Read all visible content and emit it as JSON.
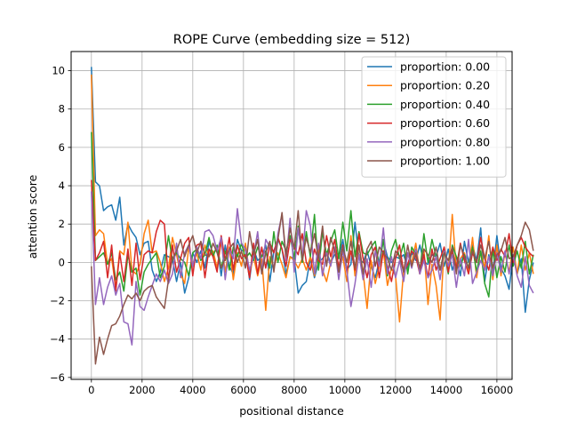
{
  "chart_data": {
    "type": "line",
    "title": "ROPE Curve (embedding size = 512)",
    "xlabel": "positional distance",
    "ylabel": "attention score",
    "xlim": [
      -800,
      16600
    ],
    "ylim": [
      -6.1,
      11.0
    ],
    "xticks": [
      0,
      2000,
      4000,
      6000,
      8000,
      10000,
      12000,
      14000,
      16000
    ],
    "yticks": [
      -6,
      -4,
      -2,
      0,
      2,
      4,
      6,
      8,
      10
    ],
    "grid": true,
    "legend_position": "top-right",
    "x_start": 0,
    "x_step": 160,
    "series": [
      {
        "name": "proportion: 0.00",
        "color": "#1f77b4",
        "values": [
          10.2,
          4.2,
          4.0,
          2.7,
          2.9,
          3.0,
          2.2,
          3.4,
          0.9,
          2.0,
          1.6,
          1.3,
          0.4,
          1.0,
          1.1,
          -0.4,
          -1.0,
          -0.5,
          0.4,
          0.3,
          0.2,
          -1.0,
          0.0,
          -1.6,
          -0.8,
          0.5,
          0.0,
          0.6,
          -0.3,
          1.1,
          0.4,
          0.8,
          -0.7,
          0.9,
          -0.2,
          -0.6,
          1.2,
          0.6,
          0.7,
          -0.9,
          0.7,
          0.1,
          0.3,
          0.9,
          -1.0,
          0.6,
          1.2,
          0.7,
          -0.6,
          0.3,
          0.2,
          -1.6,
          -1.2,
          -1.0,
          0.2,
          -0.8,
          0.0,
          0.2,
          0.5,
          0.0,
          0.4,
          0.2,
          1.2,
          -0.4,
          -0.1,
          2.1,
          0.2,
          0.0,
          0.6,
          -0.2,
          -0.8,
          0.1,
          1.1,
          0.3,
          0.0,
          0.3,
          0.2,
          0.4,
          -0.3,
          0.5,
          0.1,
          0.9,
          0.0,
          -0.1,
          0.4,
          0.3,
          1.0,
          -0.2,
          0.7,
          -0.4,
          0.3,
          -0.7,
          1.1,
          0.0,
          0.9,
          0.1,
          1.8,
          -1.0,
          0.4,
          -0.5,
          1.4,
          -0.3,
          -0.7,
          -1.4,
          0.3,
          -0.6,
          0.2,
          -2.6,
          -0.9,
          0.0
        ]
      },
      {
        "name": "proportion: 0.20",
        "color": "#ff7f0e",
        "values": [
          9.8,
          1.4,
          1.7,
          1.5,
          -0.1,
          0.2,
          -1.3,
          0.6,
          0.4,
          2.1,
          -0.4,
          -0.6,
          -0.1,
          1.5,
          2.2,
          0.5,
          0.6,
          0.0,
          -1.0,
          -0.3,
          1.3,
          0.4,
          -0.6,
          -1.1,
          0.8,
          -0.1,
          0.5,
          -0.4,
          0.9,
          0.3,
          0.6,
          -0.3,
          1.1,
          -0.5,
          0.8,
          -0.9,
          0.5,
          -0.2,
          1.0,
          -0.6,
          0.3,
          -0.7,
          0.2,
          -2.5,
          0.3,
          -0.3,
          0.5,
          -0.1,
          -0.8,
          0.3,
          0.1,
          -0.3,
          0.2,
          -0.4,
          0.3,
          -0.7,
          0.7,
          -0.4,
          -1.0,
          0.0,
          0.8,
          -0.5,
          0.3,
          -1.0,
          1.4,
          -0.7,
          0.9,
          -0.5,
          -2.4,
          0.1,
          -1.1,
          -0.2,
          0.6,
          -1.2,
          -0.3,
          -0.7,
          -3.1,
          -0.4,
          0.4,
          0.0,
          1.0,
          -0.6,
          0.7,
          -2.2,
          -0.1,
          -1.2,
          -3.0,
          0.8,
          -0.5,
          2.5,
          -0.4,
          0.2,
          0.5,
          -0.4,
          1.3,
          -0.8,
          0.6,
          -0.3,
          1.4,
          -0.9,
          0.9,
          -0.7,
          0.5,
          -0.5,
          0.8,
          -0.6,
          0.9,
          -0.4,
          0.5,
          -0.6
        ]
      },
      {
        "name": "proportion: 0.40",
        "color": "#2ca02c",
        "values": [
          6.8,
          0.1,
          0.3,
          0.5,
          -0.1,
          0.5,
          -0.9,
          -0.5,
          -1.5,
          0.4,
          -0.5,
          -0.3,
          -1.7,
          -0.5,
          -0.1,
          0.2,
          0.5,
          -0.8,
          -0.2,
          1.4,
          0.1,
          0.5,
          0.2,
          0.0,
          -0.7,
          0.5,
          0.7,
          0.1,
          0.4,
          1.3,
          0.3,
          0.9,
          -0.3,
          0.6,
          -0.4,
          0.8,
          0.3,
          1.0,
          0.2,
          0.5,
          0.1,
          0.8,
          0.3,
          0.6,
          -0.3,
          1.6,
          0.0,
          1.1,
          0.6,
          1.4,
          0.2,
          1.9,
          0.0,
          1.6,
          0.3,
          2.5,
          -0.4,
          1.6,
          0.4,
          1.1,
          1.7,
          0.2,
          2.1,
          0.6,
          2.7,
          0.3,
          1.6,
          0.5,
          0.4,
          0.8,
          1.1,
          -0.2,
          1.2,
          -0.7,
          0.6,
          1.2,
          0.2,
          1.0,
          -0.6,
          0.8,
          0.4,
          -0.5,
          1.5,
          0.0,
          1.2,
          0.3,
          -0.4,
          0.6,
          -0.6,
          0.9,
          0.3,
          -0.2,
          0.4,
          -0.3,
          0.8,
          -0.5,
          0.6,
          -1.1,
          -1.8,
          0.7,
          -0.8,
          0.3,
          -0.5,
          0.9,
          -0.2,
          0.6,
          -0.3,
          1.1,
          -0.6,
          0.4
        ]
      },
      {
        "name": "proportion: 0.60",
        "color": "#d62728",
        "values": [
          4.3,
          0.1,
          0.5,
          1.1,
          -0.8,
          0.9,
          -1.5,
          0.5,
          -1.0,
          0.7,
          -1.2,
          1.0,
          -0.9,
          0.4,
          0.6,
          0.5,
          1.6,
          2.2,
          2.0,
          -1.0,
          0.9,
          -0.5,
          0.2,
          1.0,
          1.3,
          -0.7,
          0.9,
          1.0,
          -0.8,
          0.7,
          0.3,
          -0.5,
          1.4,
          0.1,
          1.3,
          -0.4,
          0.9,
          0.2,
          0.4,
          -0.8,
          1.0,
          -0.6,
          0.8,
          -0.3,
          1.0,
          0.5,
          1.3,
          0.7,
          -0.2,
          1.2,
          0.8,
          0.4,
          1.5,
          0.0,
          -0.4,
          0.7,
          0.1,
          -0.1,
          1.4,
          0.3,
          1.2,
          -0.3,
          0.9,
          -0.5,
          0.6,
          -0.4,
          1.5,
          0.2,
          -0.8,
          0.4,
          0.8,
          -0.8,
          0.6,
          -0.2,
          -1.0,
          0.2,
          0.9,
          -0.5,
          -0.1,
          0.6,
          0.3,
          -0.6,
          0.4,
          -0.8,
          0.7,
          -0.4,
          0.2,
          0.8,
          -0.5,
          0.6,
          -0.3,
          1.0,
          0.1,
          -0.6,
          0.5,
          0.0,
          1.3,
          0.2,
          -0.4,
          0.8,
          0.1,
          0.7,
          0.3,
          1.5,
          0.0,
          0.9,
          1.3,
          0.8,
          0.5,
          0.3
        ]
      },
      {
        "name": "proportion: 0.80",
        "color": "#9467bd",
        "values": [
          3.7,
          -2.2,
          -0.8,
          -2.2,
          -1.3,
          -0.7,
          -1.7,
          -1.1,
          -3.1,
          -3.2,
          -4.3,
          -1.0,
          -2.3,
          -2.5,
          -1.8,
          -1.2,
          -0.6,
          -1.0,
          -0.4,
          -1.1,
          -0.6,
          1.0,
          -0.8,
          0.5,
          0.9,
          -0.2,
          0.8,
          0.2,
          1.6,
          1.7,
          1.4,
          0.6,
          1.3,
          -0.9,
          0.7,
          0.2,
          2.8,
          1.0,
          0.7,
          -0.4,
          0.3,
          1.6,
          -0.5,
          1.2,
          0.8,
          -0.4,
          1.5,
          2.5,
          0.1,
          2.3,
          -0.5,
          1.8,
          0.2,
          2.7,
          1.9,
          -0.6,
          1.0,
          -0.7,
          0.5,
          -0.2,
          0.8,
          -0.9,
          0.6,
          -0.4,
          -2.3,
          -1.1,
          0.4,
          -0.9,
          0.2,
          -1.3,
          0.6,
          -0.2,
          1.8,
          -0.6,
          0.3,
          -0.8,
          0.1,
          -1.0,
          0.5,
          -0.3,
          0.7,
          -0.6,
          0.1,
          -0.8,
          -0.4,
          0.3,
          -0.9,
          0.6,
          -0.2,
          0.4,
          -1.3,
          0.2,
          -0.7,
          1.2,
          -1.1,
          -0.5,
          0.1,
          -0.4,
          0.3,
          -0.7,
          0.5,
          -0.5,
          0.6,
          -0.6,
          0.4,
          -0.7,
          -1.3,
          0.3,
          -1.2,
          -1.6
        ]
      },
      {
        "name": "proportion: 1.00",
        "color": "#8c564b",
        "values": [
          -0.2,
          -5.3,
          -3.9,
          -4.8,
          -4.0,
          -3.3,
          -3.2,
          -2.8,
          -2.2,
          -1.7,
          -1.9,
          -1.6,
          -2.0,
          -1.5,
          -1.3,
          -1.2,
          -1.8,
          -2.1,
          -2.4,
          -0.9,
          0.2,
          0.6,
          1.2,
          0.3,
          0.9,
          1.4,
          0.5,
          1.1,
          0.4,
          0.3,
          1.0,
          0.5,
          -0.3,
          0.2,
          0.7,
          1.0,
          0.0,
          0.6,
          -0.3,
          1.6,
          0.4,
          1.2,
          -0.6,
          0.5,
          1.1,
          -0.5,
          1.2,
          2.6,
          0.3,
          1.8,
          0.7,
          2.7,
          0.1,
          1.3,
          0.5,
          1.5,
          0.2,
          1.9,
          -0.2,
          1.3,
          0.6,
          -0.5,
          0.8,
          0.0,
          1.1,
          -0.3,
          0.9,
          -0.6,
          0.7,
          1.1,
          -0.2,
          0.8,
          0.5,
          0.2,
          -0.4,
          0.6,
          0.3,
          -0.5,
          0.9,
          -0.2,
          0.5,
          -0.3,
          0.7,
          0.4,
          0.0,
          0.8,
          -0.4,
          0.5,
          0.1,
          0.8,
          -0.6,
          0.9,
          0.3,
          -0.3,
          0.6,
          0.0,
          0.9,
          0.2,
          1.1,
          -0.3,
          0.4,
          0.6,
          1.3,
          0.2,
          0.3,
          0.9,
          1.4,
          2.1,
          1.7,
          0.6
        ]
      }
    ]
  }
}
